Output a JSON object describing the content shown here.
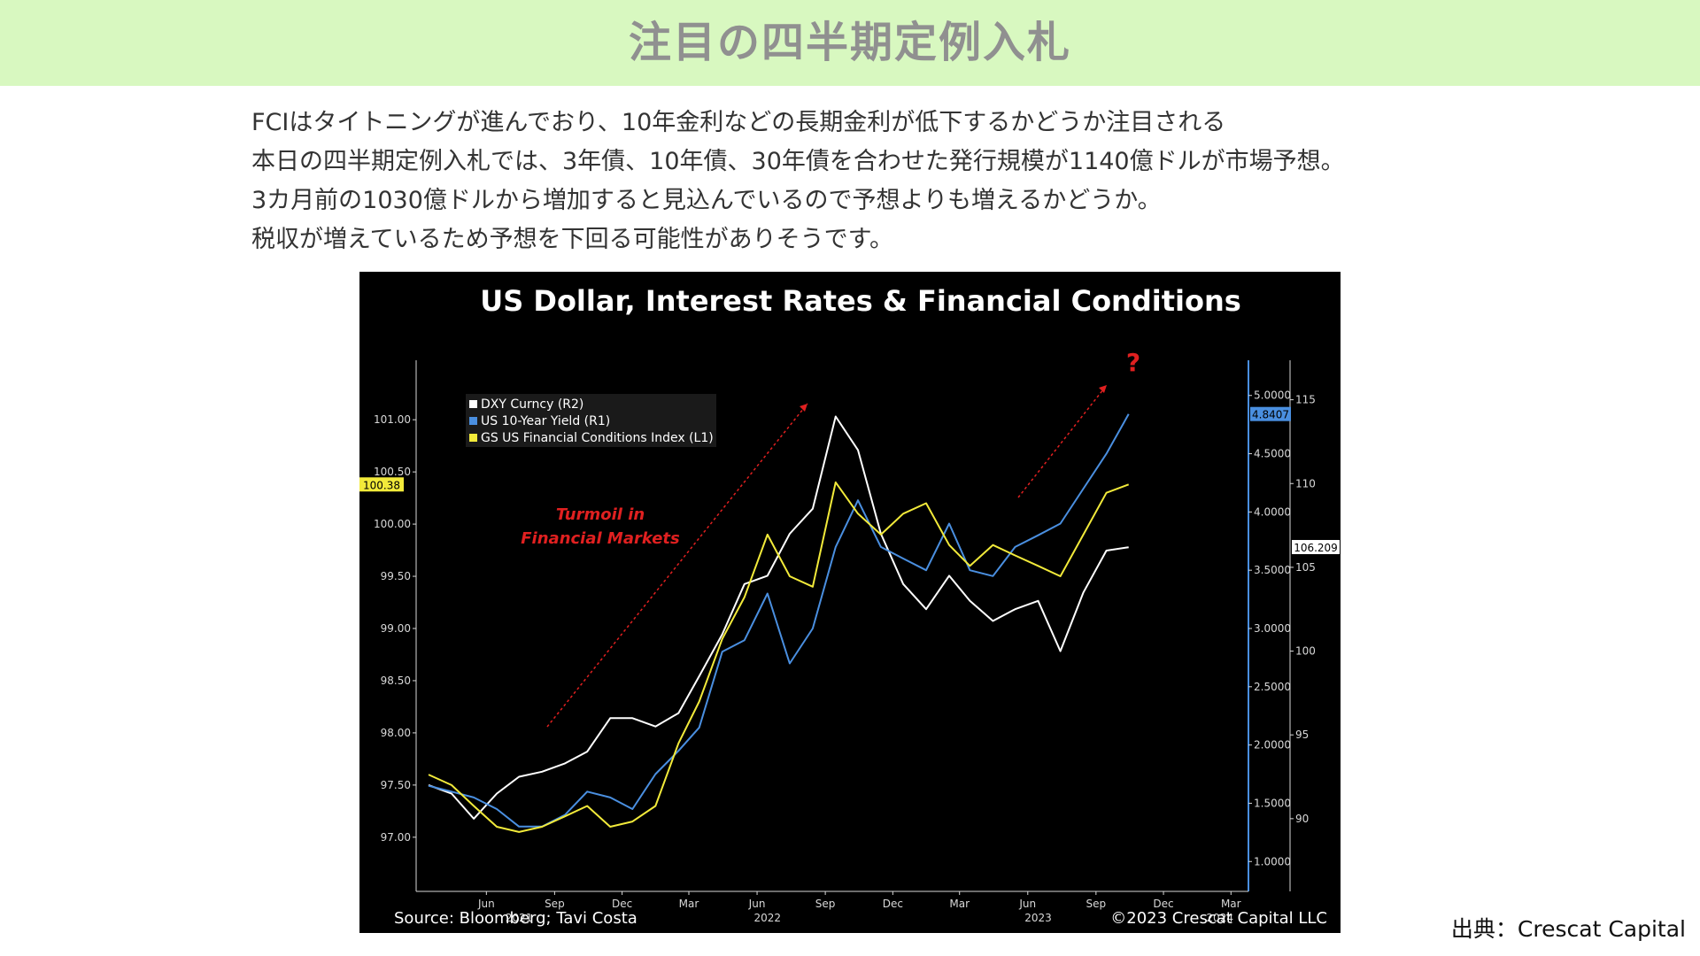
{
  "header": {
    "title": "注目の四半期定例入札"
  },
  "body_text": [
    "FCIはタイトニングが進んでおり、10年金利などの長期金利が低下するかどうか注目される",
    "本日の四半期定例入札では、3年債、10年債、30年債を合わせた発行規模が1140億ドルが市場予想。",
    "3カ月前の1030億ドルから増加すると見込んでいるので予想よりも増えるかどうか。",
    "税収が増えているため予想を下回る可能性がありそうです。"
  ],
  "source_credit": "出典：Crescat Capital",
  "colors": {
    "dxy": "#ffffff",
    "us10y": "#4a8fe0",
    "fci": "#f2ea3a",
    "annotation": "#e02020",
    "axis": "#d8d8d8",
    "background": "#000000"
  },
  "chart_data": {
    "type": "line",
    "title": "US Dollar, Interest Rates & Financial Conditions",
    "source": "Source: Bloomberg; Tavi Costa",
    "copyright": "©2023 Crescat Capital LLC",
    "x_tick_labels": [
      "Jun",
      "Sep",
      "Dec",
      "Mar",
      "Jun",
      "Sep",
      "Dec",
      "Mar",
      "Jun",
      "Sep",
      "Dec",
      "Mar"
    ],
    "x_tick_dates": [
      "2021-06-01",
      "2021-09-01",
      "2021-12-01",
      "2022-03-01",
      "2022-06-01",
      "2022-09-01",
      "2022-12-01",
      "2023-03-01",
      "2023-06-01",
      "2023-09-01",
      "2023-12-01",
      "2024-03-01"
    ],
    "x_year_labels": [
      {
        "label": "2021",
        "date": "2021-07-15"
      },
      {
        "label": "2022",
        "date": "2022-06-15"
      },
      {
        "label": "2023",
        "date": "2023-06-15"
      },
      {
        "label": "2024",
        "date": "2024-02-15"
      }
    ],
    "xlim": [
      "2021-03-15",
      "2024-03-15"
    ],
    "axes": {
      "L1": {
        "ylim": [
          96.6,
          101.4
        ],
        "ticks": [
          "97.00",
          "97.50",
          "98.00",
          "98.50",
          "99.00",
          "99.50",
          "100.00",
          "100.50",
          "101.00"
        ],
        "last_value_label": "100.38"
      },
      "R1": {
        "ylim": [
          0.85,
          5.15
        ],
        "ticks": [
          "1.0000",
          "1.5000",
          "2.0000",
          "2.5000",
          "3.0000",
          "3.5000",
          "4.0000",
          "4.5000",
          "5.0000"
        ],
        "last_value_label": "4.8407"
      },
      "R2": {
        "ylim": [
          86.4,
          116.3
        ],
        "ticks": [
          "90",
          "95",
          "100",
          "105",
          "110",
          "115"
        ],
        "last_value_label": "106.209"
      }
    },
    "legend": {
      "placement": "top-left",
      "entries": [
        "DXY Curncy (R2)",
        "US 10-Year Yield (R1)",
        "GS US Financial Conditions Index (L1)"
      ]
    },
    "annotations": {
      "turmoil_line1": "Turmoil in",
      "turmoil_line2": "Financial Markets",
      "question_mark": "?"
    },
    "series": [
      {
        "name": "DXY Curncy (R2)",
        "axis": "R2",
        "x": [
          "2021-03-15",
          "2021-04-15",
          "2021-05-15",
          "2021-06-15",
          "2021-07-15",
          "2021-08-15",
          "2021-09-15",
          "2021-10-15",
          "2021-11-15",
          "2021-12-15",
          "2022-01-15",
          "2022-02-15",
          "2022-03-15",
          "2022-04-15",
          "2022-05-15",
          "2022-06-15",
          "2022-07-15",
          "2022-08-15",
          "2022-09-15",
          "2022-10-15",
          "2022-11-15",
          "2022-12-15",
          "2023-01-15",
          "2023-02-15",
          "2023-03-15",
          "2023-04-15",
          "2023-05-15",
          "2023-06-15",
          "2023-07-15",
          "2023-08-15",
          "2023-09-15",
          "2023-10-15"
        ],
        "values": [
          92.0,
          91.5,
          90.0,
          91.5,
          92.5,
          92.8,
          93.3,
          94.0,
          96.0,
          96.0,
          95.5,
          96.3,
          98.5,
          101.0,
          104.0,
          104.5,
          107.0,
          108.5,
          114.0,
          112.0,
          107.0,
          104.0,
          102.5,
          104.5,
          103.0,
          101.8,
          102.5,
          103.0,
          100.0,
          103.5,
          106.0,
          106.2
        ]
      },
      {
        "name": "US 10-Year Yield (R1)",
        "axis": "R1",
        "x": [
          "2021-03-15",
          "2021-04-15",
          "2021-05-15",
          "2021-06-15",
          "2021-07-15",
          "2021-08-15",
          "2021-09-15",
          "2021-10-15",
          "2021-11-15",
          "2021-12-15",
          "2022-01-15",
          "2022-02-15",
          "2022-03-15",
          "2022-04-15",
          "2022-05-15",
          "2022-06-15",
          "2022-07-15",
          "2022-08-15",
          "2022-09-15",
          "2022-10-15",
          "2022-11-15",
          "2022-12-15",
          "2023-01-15",
          "2023-02-15",
          "2023-03-15",
          "2023-04-15",
          "2023-05-15",
          "2023-06-15",
          "2023-07-15",
          "2023-08-15",
          "2023-09-15",
          "2023-10-15"
        ],
        "values": [
          1.65,
          1.6,
          1.55,
          1.45,
          1.3,
          1.3,
          1.4,
          1.6,
          1.55,
          1.45,
          1.75,
          1.95,
          2.15,
          2.8,
          2.9,
          3.3,
          2.7,
          3.0,
          3.7,
          4.1,
          3.7,
          3.6,
          3.5,
          3.9,
          3.5,
          3.45,
          3.7,
          3.8,
          3.9,
          4.2,
          4.5,
          4.84
        ]
      },
      {
        "name": "GS US Financial Conditions Index (L1)",
        "axis": "L1",
        "x": [
          "2021-03-15",
          "2021-04-15",
          "2021-05-15",
          "2021-06-15",
          "2021-07-15",
          "2021-08-15",
          "2021-09-15",
          "2021-10-15",
          "2021-11-15",
          "2021-12-15",
          "2022-01-15",
          "2022-02-15",
          "2022-03-15",
          "2022-04-15",
          "2022-05-15",
          "2022-06-15",
          "2022-07-15",
          "2022-08-15",
          "2022-09-15",
          "2022-10-15",
          "2022-11-15",
          "2022-12-15",
          "2023-01-15",
          "2023-02-15",
          "2023-03-15",
          "2023-04-15",
          "2023-05-15",
          "2023-06-15",
          "2023-07-15",
          "2023-08-15",
          "2023-09-15",
          "2023-10-15"
        ],
        "values": [
          97.6,
          97.5,
          97.3,
          97.1,
          97.05,
          97.1,
          97.2,
          97.3,
          97.1,
          97.15,
          97.3,
          97.9,
          98.3,
          98.9,
          99.3,
          99.9,
          99.5,
          99.4,
          100.4,
          100.1,
          99.9,
          100.1,
          100.2,
          99.8,
          99.6,
          99.8,
          99.7,
          99.6,
          99.5,
          99.9,
          100.3,
          100.38
        ]
      }
    ]
  }
}
